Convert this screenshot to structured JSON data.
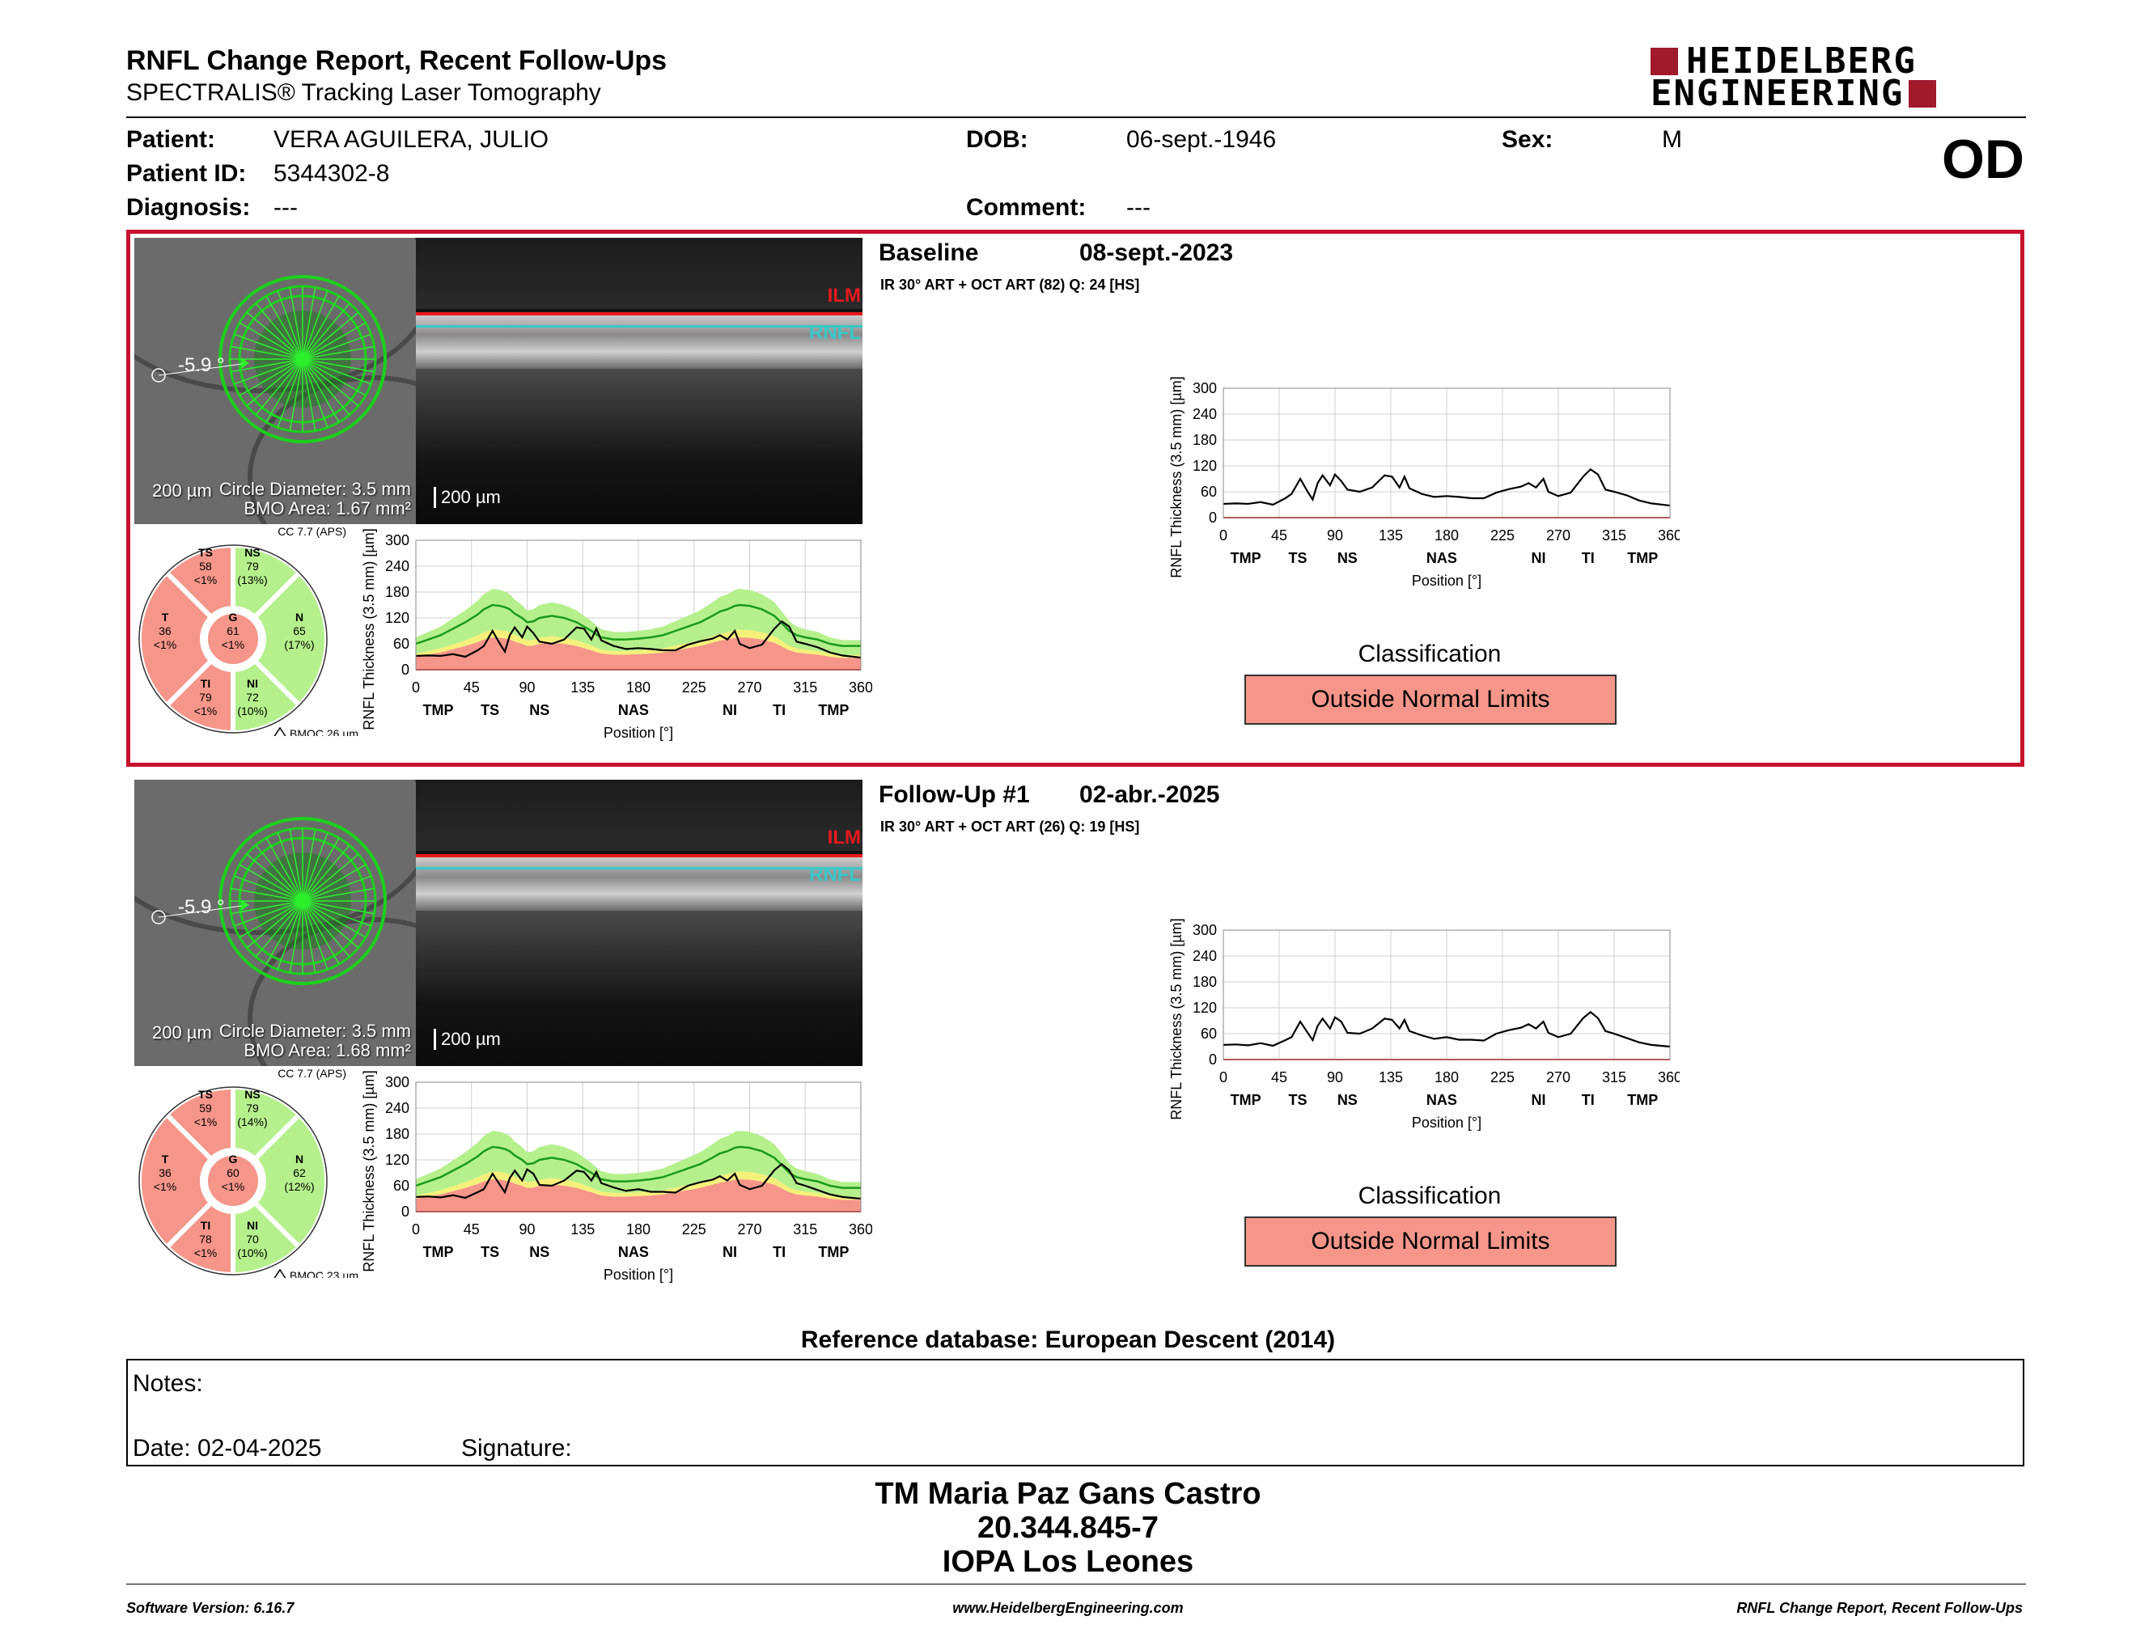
{
  "header": {
    "title": "RNFL Change Report, Recent Follow-Ups",
    "subtitle": "SPECTRALIS® Tracking Laser Tomography",
    "logo_line1": "HEIDELBERG",
    "logo_line2": "ENGINEERING",
    "eye": "OD"
  },
  "patient": {
    "patient_label": "Patient:",
    "patient_value": "VERA AGUILERA, JULIO",
    "id_label": "Patient ID:",
    "id_value": "5344302-8",
    "diagnosis_label": "Diagnosis:",
    "diagnosis_value": "---",
    "dob_label": "DOB:",
    "dob_value": "06-sept.-1946",
    "comment_label": "Comment:",
    "comment_value": "---",
    "sex_label": "Sex:",
    "sex_value": "M"
  },
  "exams": [
    {
      "title": "Baseline",
      "date": "08-sept.-2023",
      "scan": "IR 30° ART + OCT ART (82) Q: 24 [HS]",
      "angle": "-5.9 °",
      "scale": "200 µm",
      "circle_diameter": "Circle Diameter: 3.5 mm",
      "bmo_area": "BMO Area: 1.67 mm²",
      "oct_scale": "200 µm",
      "ilm": "ILM",
      "rnfl": "RNFL",
      "cc": "CC 7.7 (APS)",
      "bmoc": "BMOC 26 µm",
      "sectors": {
        "TS": [
          "TS",
          "58",
          "<1%"
        ],
        "NS": [
          "NS",
          "79",
          "(13%)"
        ],
        "T": [
          "T",
          "36",
          "<1%"
        ],
        "G": [
          "G",
          "61",
          "<1%"
        ],
        "N": [
          "N",
          "65",
          "(17%)"
        ],
        "TI": [
          "TI",
          "79",
          "<1%"
        ],
        "NI": [
          "NI",
          "72",
          "(10%)"
        ]
      },
      "classification_label": "Classification",
      "classification": "Outside Normal Limits"
    },
    {
      "title": "Follow-Up #1",
      "date": "02-abr.-2025",
      "scan": "IR 30° ART + OCT ART (26) Q: 19 [HS]",
      "angle": "-5.9 °",
      "scale": "200 µm",
      "circle_diameter": "Circle Diameter: 3.5 mm",
      "bmo_area": "BMO Area: 1.68 mm²",
      "oct_scale": "200 µm",
      "ilm": "ILM",
      "rnfl": "RNFL",
      "cc": "CC 7.7 (APS)",
      "bmoc": "BMOC 23 µm",
      "sectors": {
        "TS": [
          "TS",
          "59",
          "<1%"
        ],
        "NS": [
          "NS",
          "79",
          "(14%)"
        ],
        "T": [
          "T",
          "36",
          "<1%"
        ],
        "G": [
          "G",
          "60",
          "<1%"
        ],
        "N": [
          "N",
          "62",
          "(12%)"
        ],
        "TI": [
          "TI",
          "78",
          "<1%"
        ],
        "NI": [
          "NI",
          "70",
          "(10%)"
        ]
      },
      "classification_label": "Classification",
      "classification": "Outside Normal Limits"
    }
  ],
  "chart_data": [
    {
      "type": "line",
      "ylabel": "RNFL Thickness (3.5 mm) [µm]",
      "xlabel": "Position [°]",
      "xlim": [
        0,
        360
      ],
      "ylim": [
        0,
        300
      ],
      "xticks": [
        0,
        45,
        90,
        135,
        180,
        225,
        270,
        315,
        360
      ],
      "yticks": [
        0,
        60,
        120,
        180,
        240,
        300
      ],
      "sector_labels": [
        [
          "TMP",
          18
        ],
        [
          "TS",
          60
        ],
        [
          "NS",
          100
        ],
        [
          "NAS",
          176
        ],
        [
          "NI",
          254
        ],
        [
          "TI",
          294
        ],
        [
          "TMP",
          338
        ]
      ],
      "x": [
        0,
        10,
        20,
        30,
        40,
        50,
        55,
        62,
        68,
        72,
        76,
        80,
        86,
        90,
        95,
        100,
        110,
        120,
        130,
        136,
        142,
        146,
        150,
        160,
        170,
        180,
        190,
        200,
        210,
        220,
        230,
        240,
        246,
        252,
        258,
        262,
        270,
        280,
        290,
        296,
        302,
        308,
        315,
        325,
        335,
        345,
        360
      ],
      "series": [
        {
          "values": [
            32,
            33,
            32,
            36,
            30,
            45,
            55,
            90,
            60,
            42,
            80,
            98,
            75,
            100,
            85,
            65,
            60,
            70,
            98,
            95,
            70,
            95,
            68,
            55,
            48,
            50,
            48,
            45,
            45,
            58,
            66,
            72,
            80,
            70,
            90,
            60,
            50,
            58,
            95,
            112,
            100,
            65,
            60,
            52,
            40,
            33,
            28
          ]
        },
        {
          "values": [
            60,
            70,
            80,
            95,
            110,
            128,
            140,
            150,
            148,
            145,
            140,
            130,
            120,
            110,
            112,
            120,
            125,
            120,
            110,
            100,
            90,
            82,
            75,
            70,
            70,
            72,
            75,
            80,
            90,
            100,
            110,
            125,
            135,
            140,
            148,
            150,
            148,
            140,
            125,
            108,
            90,
            80,
            75,
            70,
            60,
            55,
            55
          ]
        }
      ]
    },
    {
      "type": "line",
      "ylabel": "RNFL Thickness (3.5 mm) [µm]",
      "xlabel": "Position [°]",
      "xlim": [
        0,
        360
      ],
      "ylim": [
        0,
        300
      ],
      "xticks": [
        0,
        45,
        90,
        135,
        180,
        225,
        270,
        315,
        360
      ],
      "yticks": [
        0,
        60,
        120,
        180,
        240,
        300
      ],
      "sector_labels": [
        [
          "TMP",
          18
        ],
        [
          "TS",
          60
        ],
        [
          "NS",
          100
        ],
        [
          "NAS",
          176
        ],
        [
          "NI",
          254
        ],
        [
          "TI",
          294
        ],
        [
          "TMP",
          338
        ]
      ],
      "x": [
        0,
        10,
        20,
        30,
        40,
        50,
        55,
        62,
        68,
        72,
        76,
        80,
        86,
        90,
        95,
        100,
        110,
        120,
        130,
        136,
        142,
        146,
        150,
        160,
        170,
        180,
        190,
        200,
        210,
        220,
        230,
        240,
        246,
        252,
        258,
        262,
        270,
        280,
        290,
        296,
        302,
        308,
        315,
        325,
        335,
        345,
        360
      ],
      "series": [
        {
          "values": [
            34,
            35,
            33,
            38,
            32,
            45,
            52,
            88,
            62,
            45,
            78,
            95,
            72,
            98,
            88,
            62,
            60,
            72,
            95,
            92,
            72,
            92,
            66,
            56,
            48,
            52,
            46,
            46,
            44,
            60,
            68,
            74,
            82,
            72,
            88,
            62,
            52,
            60,
            96,
            110,
            96,
            66,
            60,
            50,
            40,
            34,
            30
          ]
        },
        {
          "values": [
            60,
            70,
            80,
            95,
            110,
            128,
            140,
            150,
            148,
            145,
            140,
            130,
            120,
            110,
            112,
            120,
            125,
            120,
            110,
            100,
            90,
            82,
            75,
            70,
            70,
            72,
            75,
            80,
            90,
            100,
            110,
            125,
            135,
            140,
            148,
            150,
            148,
            140,
            125,
            108,
            90,
            80,
            75,
            70,
            60,
            55,
            55
          ]
        }
      ]
    }
  ],
  "classification_color": "#f6968a",
  "accent_color": "#c8102e",
  "reference": "Reference database: European Descent (2014)",
  "notes": {
    "notes_label": "Notes:",
    "date_label": "Date: 02-04-2025",
    "signature_label": "Signature:"
  },
  "signature": {
    "name": "TM Maria Paz Gans Castro",
    "id": "20.344.845-7",
    "org": "IOPA Los Leones"
  },
  "footer": {
    "version": "Software Version: 6.16.7",
    "url": "www.HeidelbergEngineering.com",
    "report": "RNFL Change Report, Recent Follow-Ups"
  }
}
